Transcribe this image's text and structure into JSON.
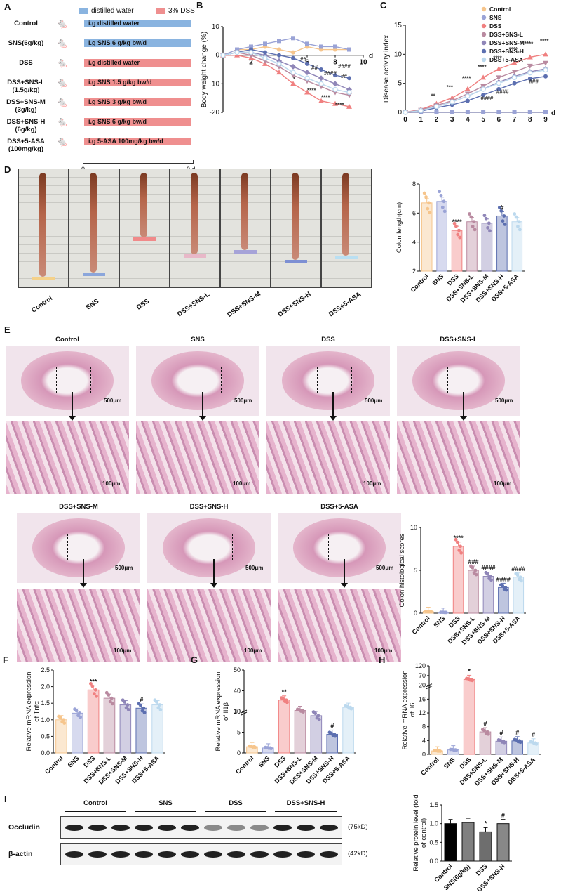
{
  "panels": {
    "A": {
      "letter": "A",
      "legend": {
        "water": "distilled water",
        "dss": "3% DSS"
      },
      "groups": [
        {
          "label": "Control",
          "sub": "",
          "treatment": "i.g distilled water",
          "color": "#8ab4e0"
        },
        {
          "label": "SNS(6g/kg)",
          "sub": "",
          "treatment": "i.g SNS 6  g/kg bw/d",
          "color": "#8ab4e0"
        },
        {
          "label": "DSS",
          "sub": "",
          "treatment": "i.g distilled water",
          "color": "#ef8f8f"
        },
        {
          "label": "DSS+SNS-L",
          "sub": "(1.5g/kg)",
          "treatment": "i.g SNS 1.5  g/kg bw/d",
          "color": "#ef8f8f"
        },
        {
          "label": "DSS+SNS-M",
          "sub": "(3g/kg)",
          "treatment": "i.g SNS 3  g/kg bw/d",
          "color": "#ef8f8f"
        },
        {
          "label": "DSS+SNS-H",
          "sub": "(6g/kg)",
          "treatment": "i.g SNS 6  g/kg bw/d",
          "color": "#ef8f8f"
        },
        {
          "label": "DSS+5-ASA",
          "sub": "(100mg/kg)",
          "treatment": "i.g 5-ASA 100mg/kg bw/d",
          "color": "#ef8f8f"
        }
      ],
      "timeline": {
        "start": "0",
        "end": "9 d"
      }
    },
    "D": {
      "letter": "D",
      "photo_labels": [
        "Control",
        "SNS",
        "DSS",
        "DSS+SNS-L",
        "DSS+SNS-M",
        "DSS+SNS-H",
        "DSS+5-ASA"
      ]
    },
    "E": {
      "letter": "E",
      "top_titles": [
        "Control",
        "SNS",
        "DSS",
        "DSS+SNS-L"
      ],
      "bottom_titles": [
        "DSS+SNS-M",
        "DSS+SNS-H",
        "DSS+5-ASA"
      ],
      "scale_low": "500μm",
      "scale_high": "100μm"
    },
    "I": {
      "letter": "I",
      "blot_groups": [
        "Control",
        "SNS",
        "DSS",
        "DSS+SNS-H"
      ],
      "rows": [
        {
          "name": "Occludin",
          "kd": "(75kD)"
        },
        {
          "name": "β-actin",
          "kd": "(42kD)"
        }
      ]
    }
  },
  "colors": {
    "control": "#f6c58c",
    "sns": "#9aa3d6",
    "dss": "#f08080",
    "snsl": "#b98aa0",
    "snsm": "#8f86b8",
    "snsh": "#5c6fb0",
    "asa": "#bcd9ee"
  },
  "chart_data": [
    {
      "id": "B",
      "type": "line",
      "letter": "B",
      "title": "",
      "xlabel": "d",
      "ylabel": "Body weight change (%)",
      "xlim": [
        0,
        10
      ],
      "ylim": [
        -20,
        10
      ],
      "xticks": [
        "2",
        "4",
        "6",
        "8",
        "10"
      ],
      "yticks": [
        "10",
        "0",
        "-10",
        "-20"
      ],
      "x": [
        0,
        1,
        2,
        3,
        4,
        5,
        6,
        7,
        8,
        9
      ],
      "series": [
        {
          "name": "Control",
          "values": [
            0,
            2,
            2,
            3,
            2,
            1,
            3,
            2,
            2,
            2
          ]
        },
        {
          "name": "SNS",
          "values": [
            0,
            2,
            3,
            4,
            5,
            6,
            4,
            3,
            3,
            2
          ]
        },
        {
          "name": "DSS",
          "values": [
            0,
            0,
            -1,
            -3,
            -6,
            -10,
            -13,
            -16,
            -17,
            -18
          ]
        },
        {
          "name": "DSS+SNS-L",
          "values": [
            0,
            1,
            0,
            -2,
            -4,
            -7,
            -9,
            -11,
            -13,
            -14
          ]
        },
        {
          "name": "DSS+SNS-M",
          "values": [
            0,
            1,
            1,
            0,
            -2,
            -4,
            -6,
            -8,
            -10,
            -12
          ]
        },
        {
          "name": "DSS+SNS-H",
          "values": [
            0,
            1,
            2,
            1,
            0,
            -1,
            -3,
            -5,
            -7,
            -8
          ]
        },
        {
          "name": "DSS+5-ASA",
          "values": [
            0,
            1,
            1,
            -1,
            -3,
            -6,
            -8,
            -10,
            -12,
            -13
          ]
        }
      ],
      "annotations": [
        "*",
        "****",
        "****",
        "****",
        "##",
        "##",
        "####",
        "##",
        "####"
      ]
    },
    {
      "id": "C",
      "type": "line",
      "letter": "C",
      "title": "",
      "xlabel": "d",
      "ylabel": "Disease activity index",
      "xlim": [
        0,
        9
      ],
      "ylim": [
        0,
        15
      ],
      "xticks": [
        "0",
        "1",
        "2",
        "3",
        "4",
        "5",
        "6",
        "7",
        "8",
        "9"
      ],
      "yticks": [
        "0",
        "5",
        "10",
        "15"
      ],
      "x": [
        0,
        1,
        2,
        3,
        4,
        5,
        6,
        7,
        8,
        9
      ],
      "series": [
        {
          "name": "Control",
          "values": [
            0,
            0,
            0,
            0,
            0,
            0,
            0,
            0,
            0,
            0
          ]
        },
        {
          "name": "SNS",
          "values": [
            0,
            0,
            0,
            0,
            0,
            0,
            0,
            0,
            0,
            0
          ]
        },
        {
          "name": "DSS",
          "values": [
            0,
            0.5,
            1.5,
            2.5,
            4,
            6,
            7.5,
            8.5,
            9.5,
            10
          ]
        },
        {
          "name": "DSS+SNS-L",
          "values": [
            0,
            0.4,
            1.2,
            2,
            3.2,
            4.5,
            6,
            7,
            8,
            8.5
          ]
        },
        {
          "name": "DSS+SNS-M",
          "values": [
            0,
            0.3,
            1,
            1.8,
            2.8,
            4,
            5.2,
            6.2,
            7,
            7.5
          ]
        },
        {
          "name": "DSS+SNS-H",
          "values": [
            0,
            0.2,
            0.8,
            1.3,
            2,
            3,
            4,
            5,
            5.8,
            6.2
          ]
        },
        {
          "name": "DSS+5-ASA",
          "values": [
            0,
            0.3,
            1,
            1.8,
            2.8,
            4,
            5,
            6,
            6.8,
            7.3
          ]
        }
      ],
      "annotations": [
        "**",
        "***",
        "****",
        "****",
        "****",
        "****",
        "****",
        "****",
        "####",
        "####",
        "###"
      ]
    },
    {
      "id": "D",
      "type": "bar",
      "title": "",
      "ylabel": "Colon length(cm)",
      "categories": [
        "Control",
        "SNS",
        "DSS",
        "DSS+SNS-L",
        "DSS+SNS-M",
        "DSS+SNS-H",
        "DSS+5-ASA"
      ],
      "values": [
        6.7,
        6.8,
        4.8,
        5.4,
        5.3,
        5.8,
        5.4
      ],
      "ylim": [
        2,
        8
      ],
      "yticks": [
        "2",
        "4",
        "6",
        "8"
      ],
      "stars": [
        "",
        "",
        "****",
        "",
        "",
        "#",
        ""
      ]
    },
    {
      "id": "E",
      "type": "bar",
      "title": "",
      "ylabel": "Colon histological scores",
      "categories": [
        "Control",
        "SNS",
        "DSS",
        "DSS+SNS-L",
        "DSS+SNS-M",
        "DSS+SNS-H",
        "DSS+5-ASA"
      ],
      "values": [
        0.2,
        0.1,
        7.8,
        5.0,
        4.3,
        3.0,
        4.2
      ],
      "ylim": [
        0,
        10
      ],
      "yticks": [
        "0",
        "5",
        "10"
      ],
      "stars": [
        "",
        "",
        "****",
        "###",
        "####",
        "####",
        "####"
      ]
    },
    {
      "id": "F",
      "type": "bar",
      "letter": "F",
      "title": "",
      "ylabel": "Relative mRNA expression of Tnfα",
      "categories": [
        "Control",
        "SNS",
        "DSS",
        "DSS+SNS-L",
        "DSS+SNS-M",
        "DSS+SNS-H",
        "DSS+5-ASA"
      ],
      "values": [
        1.0,
        1.2,
        1.9,
        1.65,
        1.45,
        1.35,
        1.45
      ],
      "ylim": [
        0,
        2.5
      ],
      "yticks": [
        "0.0",
        "0.5",
        "1.0",
        "1.5",
        "2.0",
        "2.5"
      ],
      "stars": [
        "",
        "",
        "***",
        "",
        "",
        "#",
        ""
      ]
    },
    {
      "id": "G",
      "type": "bar",
      "letter": "G",
      "title": "",
      "ylabel": "Relative mRNA expression of Il1β",
      "categories": [
        "Control",
        "SNS",
        "DSS",
        "DSS+SNS-L",
        "DSS+SNS-M",
        "DSS+SNS-H",
        "DSS+5-ASA"
      ],
      "values": [
        1.5,
        1.2,
        21,
        11,
        9,
        4.5,
        14
      ],
      "ylim": [
        0,
        50
      ],
      "yticks": [
        "0",
        "5",
        "10",
        "30",
        "40",
        "50"
      ],
      "stars": [
        "",
        "",
        "**",
        "",
        "",
        "#",
        ""
      ]
    },
    {
      "id": "H",
      "type": "bar",
      "letter": "H",
      "title": "",
      "ylabel": "Relative mRNA expression of Il6",
      "categories": [
        "Control",
        "SNS",
        "DSS",
        "DSS+SNS-L",
        "DSS+SNS-M",
        "DSS+SNS-H",
        "DSS+5-ASA"
      ],
      "values": [
        1.0,
        1.3,
        50,
        6.5,
        3.8,
        3.9,
        3.3
      ],
      "ylim": [
        0,
        120
      ],
      "yticks": [
        "0",
        "4",
        "8",
        "12",
        "16",
        "20",
        "70",
        "120"
      ],
      "stars": [
        "",
        "",
        "*",
        "#",
        "#",
        "#",
        "#"
      ]
    },
    {
      "id": "I",
      "type": "bar",
      "title": "",
      "ylabel": "Relative protein level (fold of control)",
      "categories": [
        "Control",
        "SNS(6g/kg)",
        "DSS",
        "DSS+SNS-H"
      ],
      "values": [
        1.0,
        1.03,
        0.78,
        1.0
      ],
      "ylim": [
        0,
        1.5
      ],
      "yticks": [
        "0.0",
        "0.5",
        "1.0",
        "1.5"
      ],
      "stars": [
        "",
        "",
        "*",
        "#"
      ]
    }
  ]
}
